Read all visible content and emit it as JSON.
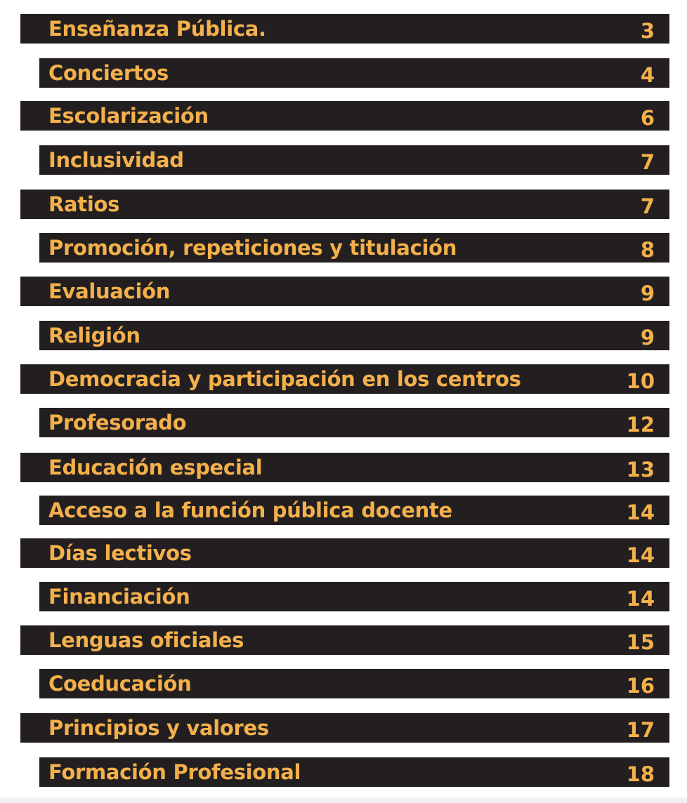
{
  "colors": {
    "bar": "#231f20",
    "text": "#f3b04b",
    "background": "#ffffff"
  },
  "toc": {
    "entries": [
      {
        "title": "Enseñanza Pública.",
        "page": "3"
      },
      {
        "title": "Conciertos",
        "page": "4"
      },
      {
        "title": "Escolarización",
        "page": "6"
      },
      {
        "title": "Inclusividad",
        "page": "7"
      },
      {
        "title": "Ratios",
        "page": "7"
      },
      {
        "title": "Promoción, repeticiones y titulación",
        "page": "8"
      },
      {
        "title": "Evaluación",
        "page": "9"
      },
      {
        "title": "Religión",
        "page": "9"
      },
      {
        "title": "Democracia y participación en los centros",
        "page": "10"
      },
      {
        "title": "Profesorado",
        "page": "12"
      },
      {
        "title": "Educación especial",
        "page": "13"
      },
      {
        "title": "Acceso a la función pública docente",
        "page": "14"
      },
      {
        "title": "Días lectivos",
        "page": "14"
      },
      {
        "title": "Financiación",
        "page": "14"
      },
      {
        "title": "Lenguas oficiales",
        "page": "15"
      },
      {
        "title": "Coeducación",
        "page": "16"
      },
      {
        "title": "Principios y valores",
        "page": "17"
      },
      {
        "title": "Formación Profesional",
        "page": "18"
      }
    ]
  }
}
